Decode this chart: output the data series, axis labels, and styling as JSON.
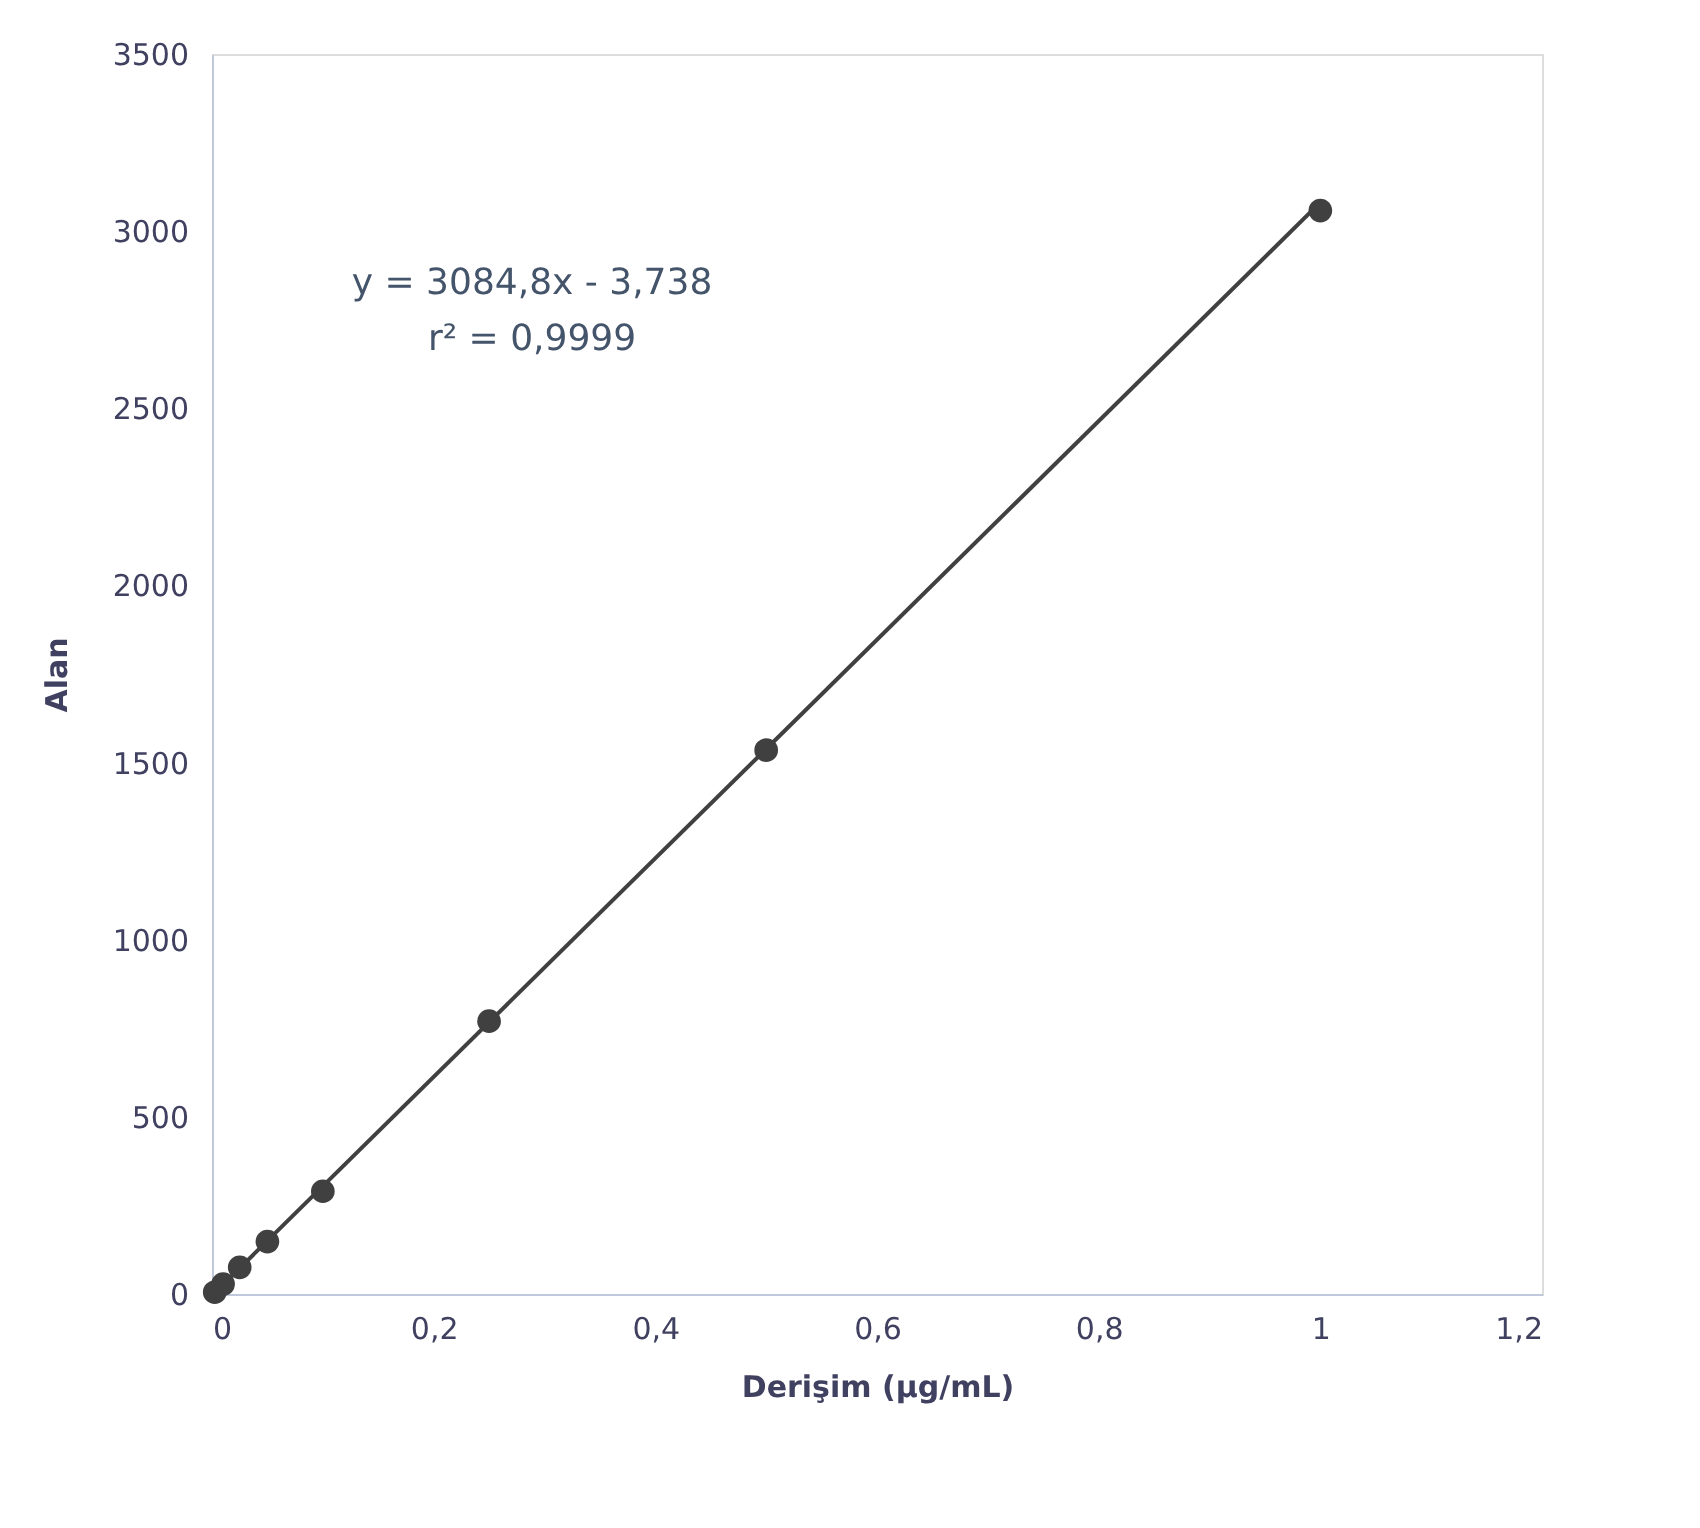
{
  "chart_data": {
    "type": "scatter",
    "xlabel": "Derişim (µg/mL)",
    "ylabel": "Alan",
    "xlim": [
      0,
      1.2
    ],
    "xticks": [
      {
        "value": 0,
        "label": "0"
      },
      {
        "value": 0.2,
        "label": "0,2"
      },
      {
        "value": 0.4,
        "label": "0,4"
      },
      {
        "value": 0.6,
        "label": "0,6"
      },
      {
        "value": 0.8,
        "label": "0,8"
      },
      {
        "value": 1,
        "label": "1"
      },
      {
        "value": 1.2,
        "label": "1,2"
      }
    ],
    "ylim": [
      0,
      3500
    ],
    "yticks": [
      0,
      500,
      1000,
      1500,
      2000,
      2500,
      3000,
      3500
    ],
    "grid": false,
    "series": [
      {
        "color": "#404040",
        "marker": "circle",
        "x": [
          0.0025,
          0.01,
          0.025,
          0.05,
          0.1,
          0.25,
          0.5,
          1
        ],
        "values": [
          5,
          28,
          75,
          148,
          290,
          770,
          1535,
          3058
        ]
      },
      {
        "type": "line",
        "color": "#404040",
        "marker": "none",
        "line_style": "solid",
        "x": [
          0.002,
          1
        ],
        "values": [
          2,
          3081
        ]
      }
    ],
    "annotations": [
      "y = 3084,8x - 3,738",
      "r² = 0,9999"
    ]
  }
}
